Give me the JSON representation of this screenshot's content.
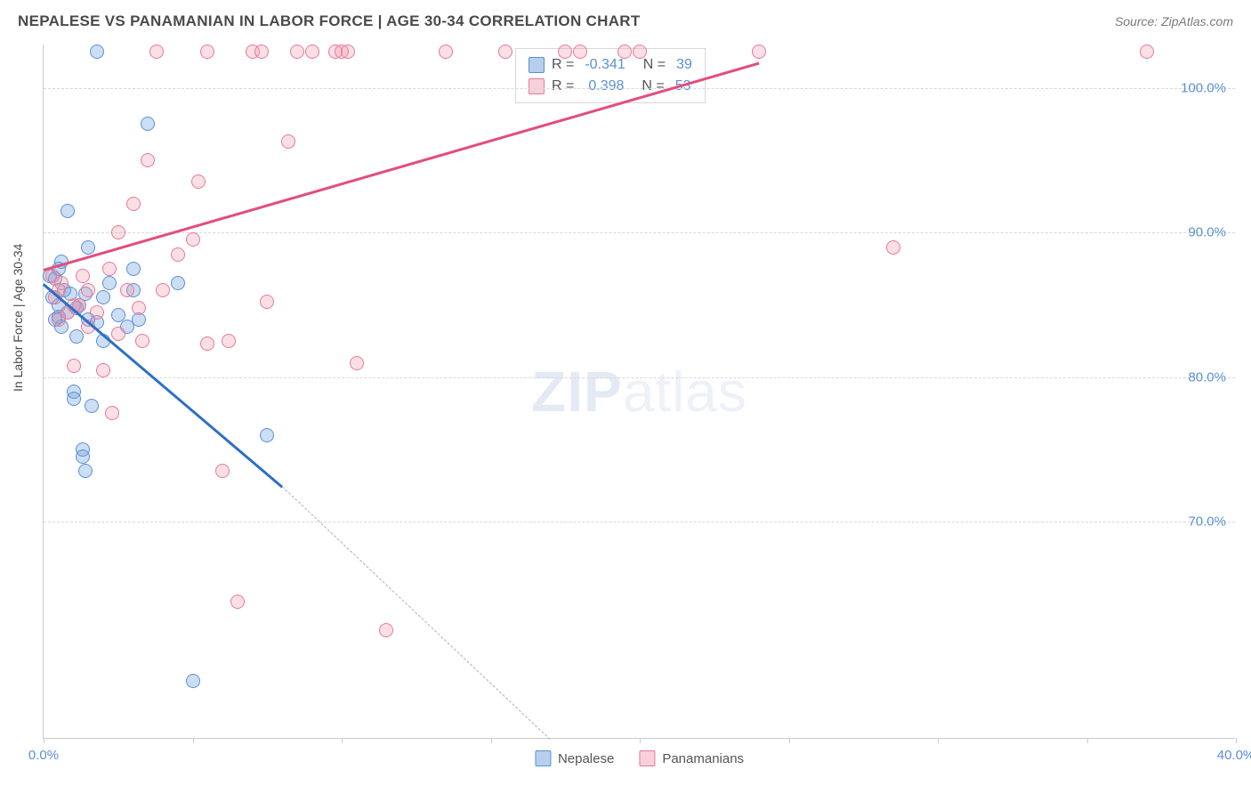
{
  "title": "NEPALESE VS PANAMANIAN IN LABOR FORCE | AGE 30-34 CORRELATION CHART",
  "source": "Source: ZipAtlas.com",
  "ylabel": "In Labor Force | Age 30-34",
  "watermark_bold": "ZIP",
  "watermark_rest": "atlas",
  "chart": {
    "type": "scatter",
    "xlim": [
      0,
      40
    ],
    "ylim": [
      55,
      103
    ],
    "x_ticks": [
      0,
      5,
      10,
      15,
      20,
      25,
      30,
      35,
      40
    ],
    "x_tick_labels": {
      "0": "0.0%",
      "40": "40.0%"
    },
    "y_ticks": [
      70,
      80,
      90,
      100
    ],
    "y_tick_labels": {
      "70": "70.0%",
      "80": "80.0%",
      "90": "90.0%",
      "100": "100.0%"
    },
    "grid_color": "#d8d8d8",
    "background_color": "#ffffff",
    "axis_color": "#cccccc",
    "series": [
      {
        "name": "Nepalese",
        "color_fill": "rgba(110,160,220,0.35)",
        "color_stroke": "#5b8fd6",
        "marker_size": 16,
        "R": "-0.341",
        "N": "39",
        "trend": {
          "x1": 0,
          "y1": 86.5,
          "x2": 8,
          "y2": 72.5,
          "color": "#2b6fc8",
          "dash_extend": {
            "x2": 17,
            "y2": 55
          }
        },
        "points": [
          [
            0.2,
            87.0
          ],
          [
            0.3,
            85.5
          ],
          [
            0.4,
            86.8
          ],
          [
            0.5,
            84.2
          ],
          [
            0.5,
            85.0
          ],
          [
            0.6,
            83.5
          ],
          [
            0.6,
            88.0
          ],
          [
            0.7,
            86.0
          ],
          [
            0.8,
            84.5
          ],
          [
            0.8,
            91.5
          ],
          [
            1.0,
            79.0
          ],
          [
            1.0,
            78.5
          ],
          [
            1.1,
            82.8
          ],
          [
            1.2,
            85.0
          ],
          [
            1.3,
            75.0
          ],
          [
            1.3,
            74.5
          ],
          [
            1.4,
            73.5
          ],
          [
            1.5,
            84.0
          ],
          [
            1.5,
            89.0
          ],
          [
            1.6,
            78.0
          ],
          [
            1.8,
            83.8
          ],
          [
            1.8,
            102.5
          ],
          [
            2.0,
            85.5
          ],
          [
            2.0,
            82.5
          ],
          [
            2.2,
            86.5
          ],
          [
            2.5,
            84.3
          ],
          [
            2.8,
            83.5
          ],
          [
            3.0,
            86.0
          ],
          [
            3.0,
            87.5
          ],
          [
            3.2,
            84.0
          ],
          [
            3.5,
            97.5
          ],
          [
            4.5,
            86.5
          ],
          [
            5.0,
            59.0
          ],
          [
            7.5,
            76.0
          ],
          [
            0.4,
            84.0
          ],
          [
            0.5,
            87.5
          ],
          [
            0.9,
            85.8
          ],
          [
            1.1,
            84.8
          ],
          [
            1.4,
            85.8
          ]
        ]
      },
      {
        "name": "Panamanians",
        "color_fill": "rgba(240,150,170,0.3)",
        "color_stroke": "#e67a99",
        "marker_size": 16,
        "R": "0.398",
        "N": "53",
        "trend": {
          "x1": 0,
          "y1": 87.5,
          "x2": 24,
          "y2": 101.8,
          "color": "#e34d7a"
        },
        "points": [
          [
            0.3,
            87.0
          ],
          [
            0.4,
            85.5
          ],
          [
            0.5,
            84.0
          ],
          [
            0.6,
            86.5
          ],
          [
            0.8,
            84.5
          ],
          [
            1.0,
            80.8
          ],
          [
            1.2,
            85.0
          ],
          [
            1.3,
            87.0
          ],
          [
            1.5,
            86.0
          ],
          [
            1.8,
            84.5
          ],
          [
            2.0,
            80.5
          ],
          [
            2.2,
            87.5
          ],
          [
            2.3,
            77.5
          ],
          [
            2.5,
            90.0
          ],
          [
            2.8,
            86.0
          ],
          [
            3.0,
            92.0
          ],
          [
            3.2,
            84.8
          ],
          [
            3.3,
            82.5
          ],
          [
            3.5,
            95.0
          ],
          [
            3.8,
            102.5
          ],
          [
            4.0,
            86.0
          ],
          [
            4.5,
            88.5
          ],
          [
            5.0,
            89.5
          ],
          [
            5.2,
            93.5
          ],
          [
            5.5,
            82.3
          ],
          [
            5.5,
            102.5
          ],
          [
            6.0,
            73.5
          ],
          [
            6.2,
            82.5
          ],
          [
            6.5,
            64.5
          ],
          [
            7.0,
            102.5
          ],
          [
            7.3,
            102.5
          ],
          [
            7.5,
            85.2
          ],
          [
            8.2,
            96.3
          ],
          [
            8.5,
            102.5
          ],
          [
            9.0,
            102.5
          ],
          [
            9.8,
            102.5
          ],
          [
            10.0,
            102.5
          ],
          [
            10.2,
            102.5
          ],
          [
            10.5,
            81.0
          ],
          [
            11.5,
            62.5
          ],
          [
            13.5,
            102.5
          ],
          [
            15.5,
            102.5
          ],
          [
            17.5,
            102.5
          ],
          [
            18.0,
            102.5
          ],
          [
            19.5,
            102.5
          ],
          [
            20.0,
            102.5
          ],
          [
            24.0,
            102.5
          ],
          [
            28.5,
            89.0
          ],
          [
            37.0,
            102.5
          ],
          [
            0.5,
            86.0
          ],
          [
            1.0,
            85.0
          ],
          [
            1.5,
            83.5
          ],
          [
            2.5,
            83.0
          ]
        ]
      }
    ],
    "legend_labels": {
      "R": "R =",
      "N": "N ="
    }
  }
}
